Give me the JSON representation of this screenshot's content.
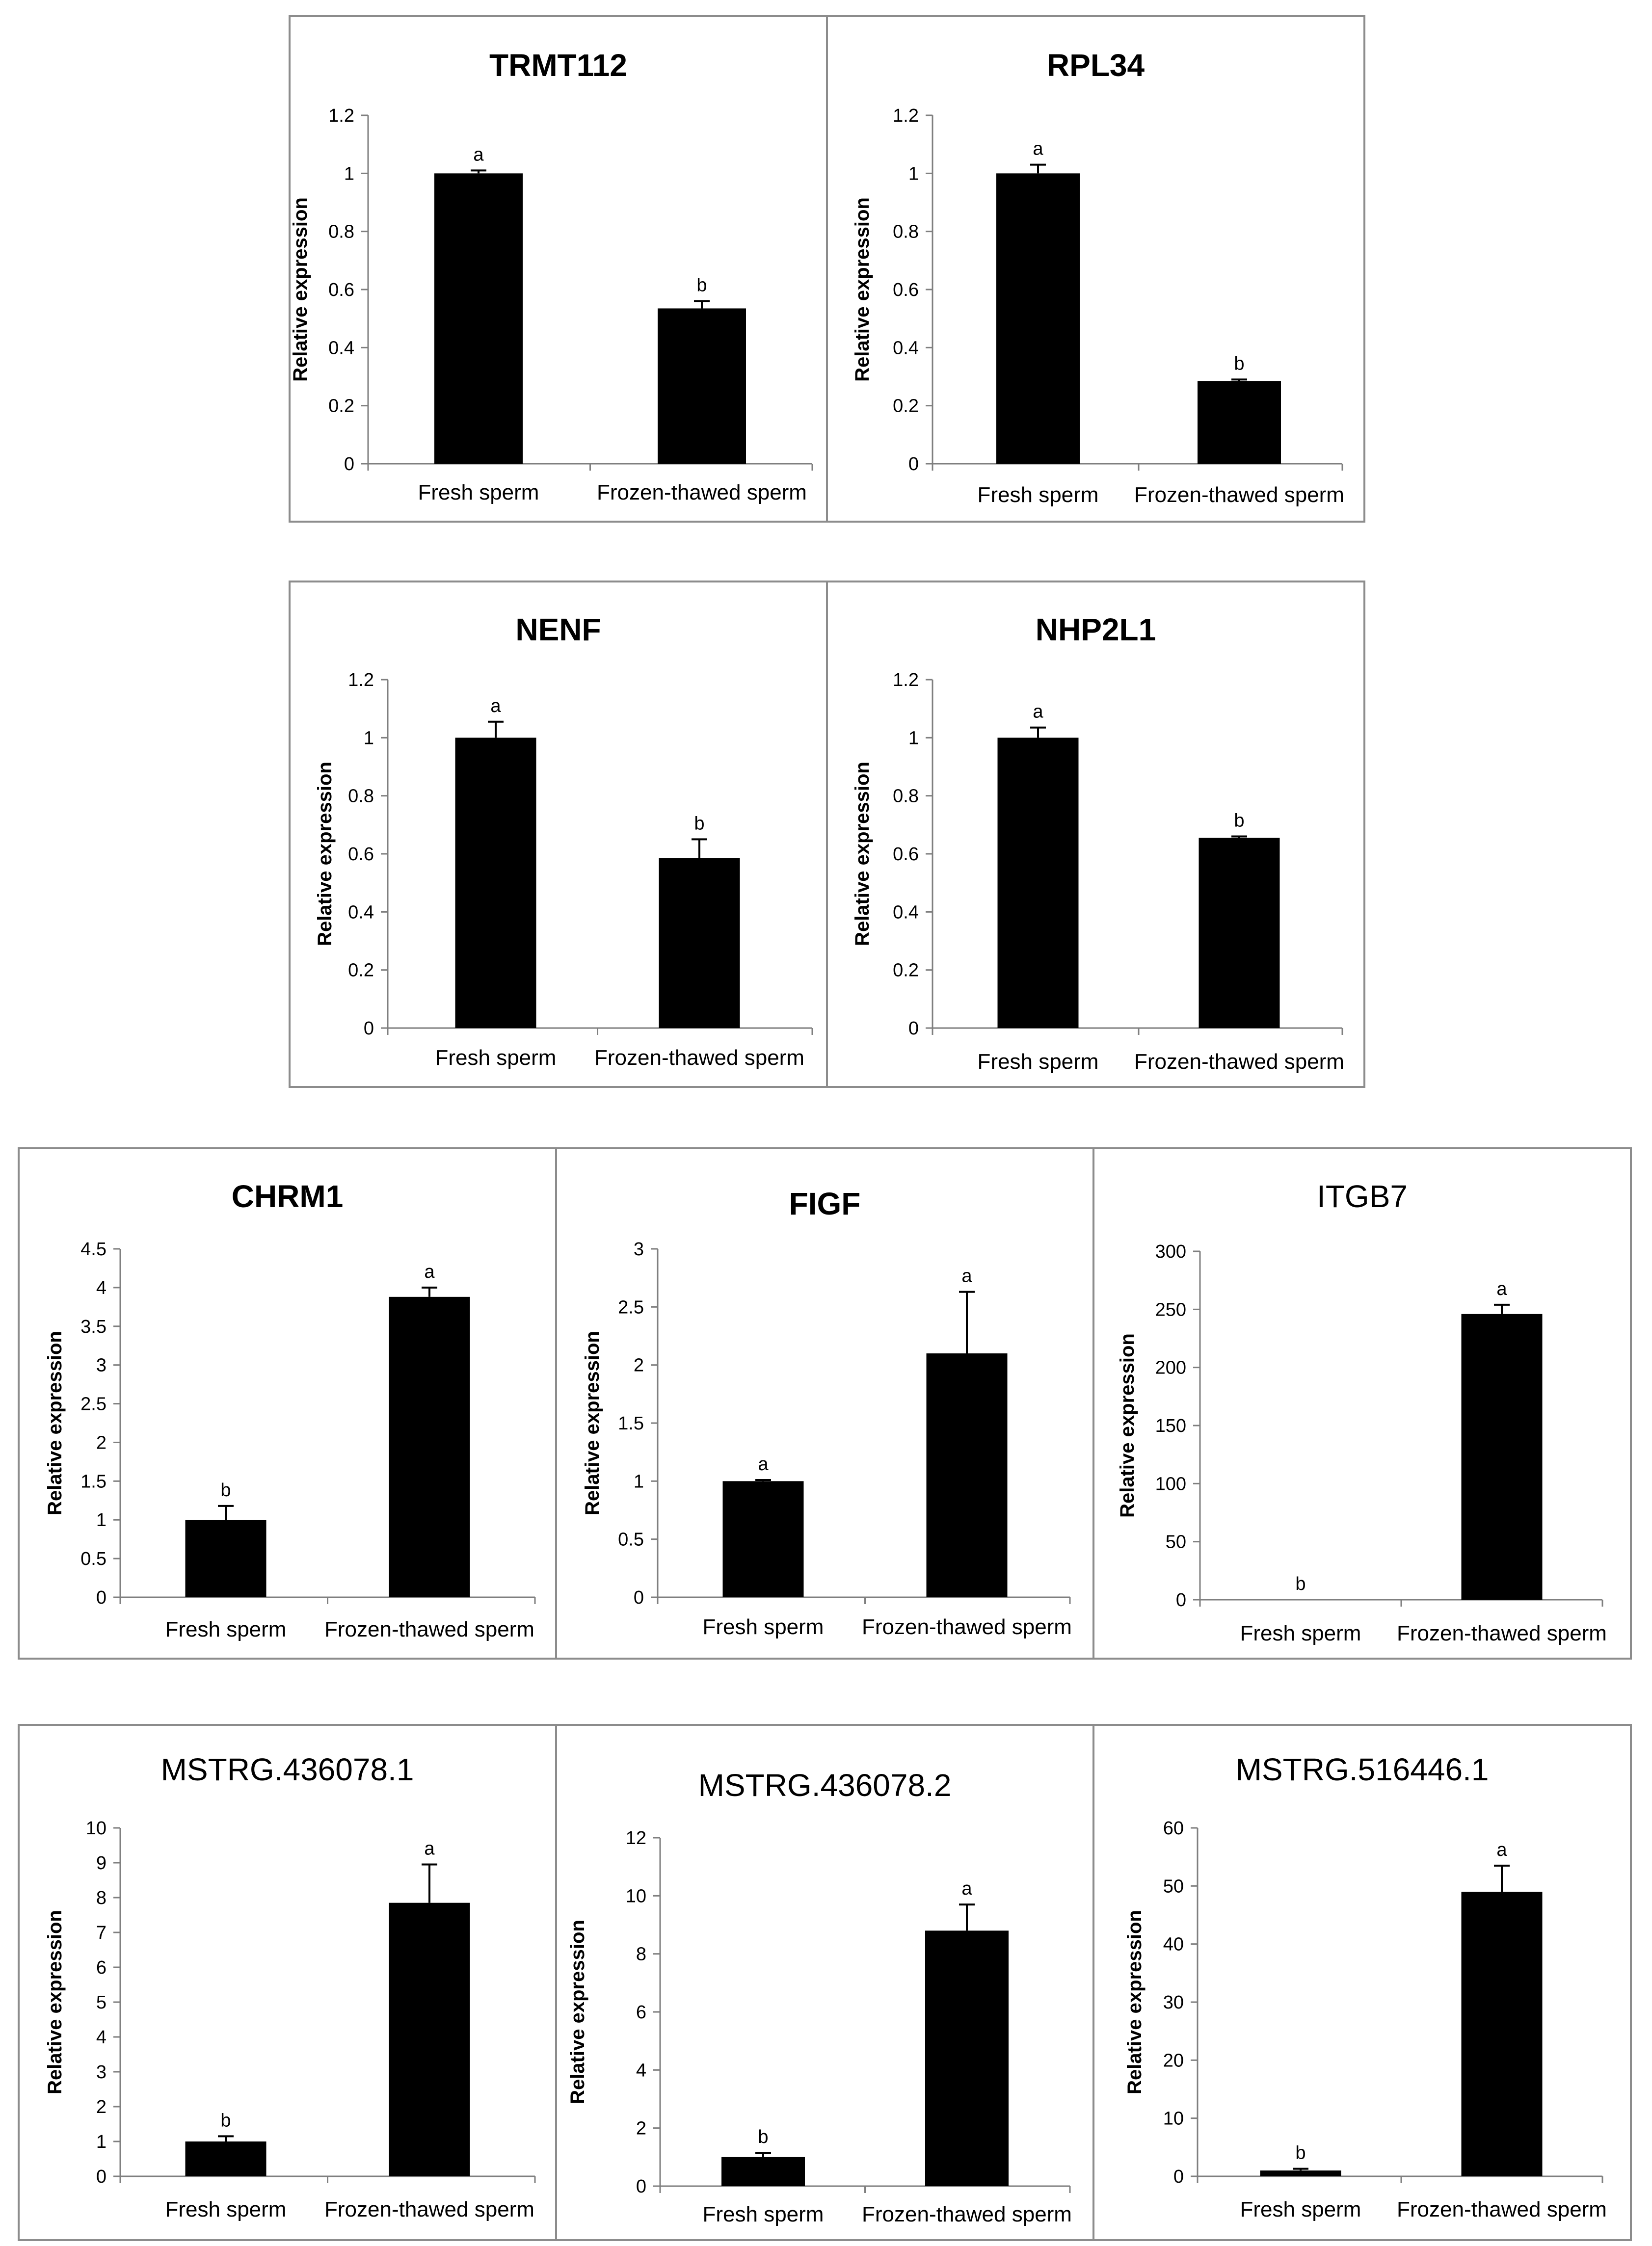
{
  "chart_data": [
    {
      "type": "bar",
      "title": "TRMT112",
      "ylabel": "Relative expression",
      "categories": [
        "Fresh sperm",
        "Frozen-thawed sperm"
      ],
      "values": [
        1.0,
        0.535
      ],
      "errors": [
        0.01,
        0.025
      ],
      "significance": [
        "a",
        "b"
      ],
      "ylim": [
        0,
        1.2
      ],
      "yticks": [
        "0",
        "0.2",
        "0.4",
        "0.6",
        "0.8",
        "1",
        "1.2"
      ]
    },
    {
      "type": "bar",
      "title": "RPL34",
      "ylabel": "Relative expression",
      "categories": [
        "Fresh sperm",
        "Frozen-thawed sperm"
      ],
      "values": [
        1.0,
        0.285
      ],
      "errors": [
        0.03,
        0.005
      ],
      "significance": [
        "a",
        "b"
      ],
      "ylim": [
        0,
        1.2
      ],
      "yticks": [
        "0",
        "0.2",
        "0.4",
        "0.6",
        "0.8",
        "1",
        "1.2"
      ]
    },
    {
      "type": "bar",
      "title": "NENF",
      "ylabel": "Relative expression",
      "categories": [
        "Fresh sperm",
        "Frozen-thawed sperm"
      ],
      "values": [
        1.0,
        0.585
      ],
      "errors": [
        0.055,
        0.065
      ],
      "significance": [
        "a",
        "b"
      ],
      "ylim": [
        0,
        1.2
      ],
      "yticks": [
        "0",
        "0.2",
        "0.4",
        "0.6",
        "0.8",
        "1",
        "1.2"
      ]
    },
    {
      "type": "bar",
      "title": "NHP2L1",
      "ylabel": "Relative expression",
      "categories": [
        "Fresh sperm",
        "Frozen-thawed sperm"
      ],
      "values": [
        1.0,
        0.655
      ],
      "errors": [
        0.035,
        0.005
      ],
      "significance": [
        "a",
        "b"
      ],
      "ylim": [
        0,
        1.2
      ],
      "yticks": [
        "0",
        "0.2",
        "0.4",
        "0.6",
        "0.8",
        "1",
        "1.2"
      ]
    },
    {
      "type": "bar",
      "title": "CHRM1",
      "ylabel": "Relative expression",
      "categories": [
        "Fresh sperm",
        "Frozen-thawed sperm"
      ],
      "values": [
        1.0,
        3.88
      ],
      "errors": [
        0.18,
        0.12
      ],
      "significance": [
        "b",
        "a"
      ],
      "ylim": [
        0,
        4.5
      ],
      "yticks": [
        "0",
        "0.5",
        "1",
        "1.5",
        "2",
        "2.5",
        "3",
        "3.5",
        "4",
        "4.5"
      ]
    },
    {
      "type": "bar",
      "title": "FIGF",
      "ylabel": "Relative expression",
      "categories": [
        "Fresh sperm",
        "Frozen-thawed sperm"
      ],
      "values": [
        1.0,
        2.1
      ],
      "errors": [
        0.01,
        0.53
      ],
      "significance": [
        "a",
        "a"
      ],
      "ylim": [
        0,
        3
      ],
      "yticks": [
        "0",
        "0.5",
        "1",
        "1.5",
        "2",
        "2.5",
        "3"
      ]
    },
    {
      "type": "bar",
      "title": "ITGB7",
      "ylabel": "Relative expression",
      "categories": [
        "Fresh sperm",
        "Frozen-thawed sperm"
      ],
      "values": [
        0,
        246
      ],
      "errors": [
        0,
        8
      ],
      "significance": [
        "b",
        "a"
      ],
      "ylim": [
        0,
        300
      ],
      "yticks": [
        "0",
        "50",
        "100",
        "150",
        "200",
        "250",
        "300"
      ]
    },
    {
      "type": "bar",
      "title": "MSTRG.436078.1",
      "ylabel": "Relative expression",
      "categories": [
        "Fresh sperm",
        "Frozen-thawed sperm"
      ],
      "values": [
        1.0,
        7.85
      ],
      "errors": [
        0.15,
        1.1
      ],
      "significance": [
        "b",
        "a"
      ],
      "ylim": [
        0,
        10
      ],
      "yticks": [
        "0",
        "1",
        "2",
        "3",
        "4",
        "5",
        "6",
        "7",
        "8",
        "9",
        "10"
      ]
    },
    {
      "type": "bar",
      "title": "MSTRG.436078.2",
      "ylabel": "Relative expression",
      "categories": [
        "Fresh sperm",
        "Frozen-thawed sperm"
      ],
      "values": [
        1.0,
        8.8
      ],
      "errors": [
        0.15,
        0.9
      ],
      "significance": [
        "b",
        "a"
      ],
      "ylim": [
        0,
        12
      ],
      "yticks": [
        "0",
        "2",
        "4",
        "6",
        "8",
        "10",
        "12"
      ]
    },
    {
      "type": "bar",
      "title": "MSTRG.516446.1",
      "ylabel": "Relative expression",
      "categories": [
        "Fresh sperm",
        "Frozen-thawed sperm"
      ],
      "values": [
        1.0,
        49.0
      ],
      "errors": [
        0.3,
        4.5
      ],
      "significance": [
        "b",
        "a"
      ],
      "ylim": [
        0,
        60
      ],
      "yticks": [
        "0",
        "10",
        "20",
        "30",
        "40",
        "50",
        "60"
      ]
    }
  ]
}
